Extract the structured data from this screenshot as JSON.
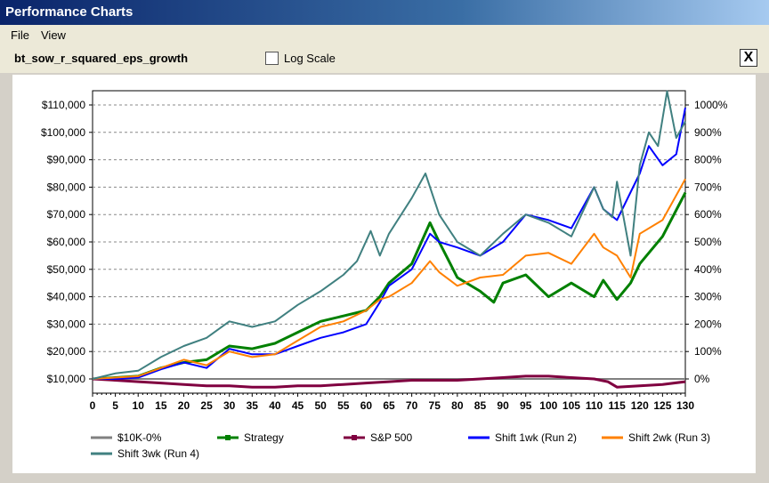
{
  "window": {
    "title": "Performance Charts"
  },
  "menu": {
    "file": "File",
    "view": "View"
  },
  "toolbar": {
    "strategy_name": "bt_sow_r_squared_eps_growth",
    "log_scale_label": "Log Scale",
    "log_scale_checked": false,
    "close_label": "X"
  },
  "chart_data": {
    "type": "line",
    "title": "",
    "xlabel": "",
    "ylabel": "",
    "x_ticks": [
      0,
      5,
      10,
      15,
      20,
      25,
      30,
      35,
      40,
      45,
      50,
      55,
      60,
      65,
      70,
      75,
      80,
      85,
      90,
      95,
      100,
      105,
      110,
      115,
      120,
      125,
      130
    ],
    "xlim": [
      0,
      130
    ],
    "ylim": [
      10000,
      110000
    ],
    "y_ticks": [
      "$10,000",
      "$20,000",
      "$30,000",
      "$40,000",
      "$50,000",
      "$60,000",
      "$70,000",
      "$80,000",
      "$90,000",
      "$100,000",
      "$110,000"
    ],
    "y2_ticks": [
      "0%",
      "100%",
      "200%",
      "300%",
      "400%",
      "500%",
      "600%",
      "700%",
      "800%",
      "900%",
      "1000%"
    ],
    "grid": true,
    "legend_position": "bottom",
    "series": [
      {
        "name": "$10K-0%",
        "color": "#808080",
        "points": [
          [
            0,
            10000
          ],
          [
            130,
            10000
          ]
        ]
      },
      {
        "name": "Strategy",
        "color": "#008000",
        "points": [
          [
            0,
            10000
          ],
          [
            5,
            10500
          ],
          [
            10,
            11000
          ],
          [
            15,
            14000
          ],
          [
            20,
            16000
          ],
          [
            25,
            17000
          ],
          [
            30,
            22000
          ],
          [
            35,
            21000
          ],
          [
            40,
            23000
          ],
          [
            45,
            27000
          ],
          [
            50,
            31000
          ],
          [
            55,
            33000
          ],
          [
            60,
            35000
          ],
          [
            63,
            40000
          ],
          [
            65,
            45000
          ],
          [
            70,
            52000
          ],
          [
            74,
            67000
          ],
          [
            76,
            60000
          ],
          [
            80,
            47000
          ],
          [
            85,
            42000
          ],
          [
            88,
            38000
          ],
          [
            90,
            45000
          ],
          [
            95,
            48000
          ],
          [
            100,
            40000
          ],
          [
            105,
            45000
          ],
          [
            110,
            40000
          ],
          [
            112,
            46000
          ],
          [
            115,
            39000
          ],
          [
            118,
            45000
          ],
          [
            120,
            52000
          ],
          [
            125,
            62000
          ],
          [
            130,
            78000
          ]
        ]
      },
      {
        "name": "S&P 500",
        "color": "#800040",
        "points": [
          [
            0,
            10000
          ],
          [
            5,
            9500
          ],
          [
            10,
            9000
          ],
          [
            15,
            8500
          ],
          [
            20,
            8000
          ],
          [
            25,
            7500
          ],
          [
            30,
            7500
          ],
          [
            35,
            7000
          ],
          [
            40,
            7000
          ],
          [
            45,
            7500
          ],
          [
            50,
            7500
          ],
          [
            55,
            8000
          ],
          [
            60,
            8500
          ],
          [
            65,
            9000
          ],
          [
            70,
            9500
          ],
          [
            75,
            9500
          ],
          [
            80,
            9500
          ],
          [
            85,
            10000
          ],
          [
            90,
            10500
          ],
          [
            95,
            11000
          ],
          [
            100,
            11000
          ],
          [
            105,
            10500
          ],
          [
            110,
            10000
          ],
          [
            113,
            9000
          ],
          [
            115,
            7000
          ],
          [
            120,
            7500
          ],
          [
            125,
            8000
          ],
          [
            130,
            9000
          ]
        ]
      },
      {
        "name": "Shift 1wk (Run 2)",
        "color": "#0000ff",
        "points": [
          [
            0,
            10000
          ],
          [
            5,
            10000
          ],
          [
            10,
            10500
          ],
          [
            15,
            13500
          ],
          [
            20,
            16000
          ],
          [
            25,
            14000
          ],
          [
            30,
            21000
          ],
          [
            35,
            19000
          ],
          [
            40,
            19000
          ],
          [
            45,
            22000
          ],
          [
            50,
            25000
          ],
          [
            55,
            27000
          ],
          [
            60,
            30000
          ],
          [
            63,
            38000
          ],
          [
            65,
            44000
          ],
          [
            70,
            50000
          ],
          [
            74,
            63000
          ],
          [
            76,
            60000
          ],
          [
            80,
            58000
          ],
          [
            85,
            55000
          ],
          [
            90,
            60000
          ],
          [
            95,
            70000
          ],
          [
            100,
            68000
          ],
          [
            105,
            65000
          ],
          [
            110,
            80000
          ],
          [
            112,
            72000
          ],
          [
            115,
            68000
          ],
          [
            120,
            85000
          ],
          [
            122,
            95000
          ],
          [
            125,
            88000
          ],
          [
            128,
            92000
          ],
          [
            130,
            109000
          ]
        ]
      },
      {
        "name": "Shift 2wk (Run 3)",
        "color": "#ff8000",
        "points": [
          [
            0,
            10000
          ],
          [
            5,
            10500
          ],
          [
            10,
            11000
          ],
          [
            15,
            14000
          ],
          [
            20,
            17000
          ],
          [
            25,
            15000
          ],
          [
            30,
            20000
          ],
          [
            35,
            18000
          ],
          [
            40,
            19000
          ],
          [
            45,
            24000
          ],
          [
            50,
            29000
          ],
          [
            55,
            31000
          ],
          [
            60,
            35000
          ],
          [
            63,
            39000
          ],
          [
            65,
            40000
          ],
          [
            70,
            45000
          ],
          [
            74,
            53000
          ],
          [
            76,
            49000
          ],
          [
            80,
            44000
          ],
          [
            85,
            47000
          ],
          [
            90,
            48000
          ],
          [
            95,
            55000
          ],
          [
            100,
            56000
          ],
          [
            105,
            52000
          ],
          [
            110,
            63000
          ],
          [
            112,
            58000
          ],
          [
            115,
            55000
          ],
          [
            118,
            47000
          ],
          [
            120,
            63000
          ],
          [
            125,
            68000
          ],
          [
            130,
            83000
          ]
        ]
      },
      {
        "name": "Shift 3wk (Run 4)",
        "color": "#408080",
        "points": [
          [
            0,
            10000
          ],
          [
            5,
            12000
          ],
          [
            10,
            13000
          ],
          [
            15,
            18000
          ],
          [
            20,
            22000
          ],
          [
            25,
            25000
          ],
          [
            30,
            31000
          ],
          [
            35,
            29000
          ],
          [
            40,
            31000
          ],
          [
            45,
            37000
          ],
          [
            50,
            42000
          ],
          [
            55,
            48000
          ],
          [
            58,
            53000
          ],
          [
            61,
            64000
          ],
          [
            63,
            55000
          ],
          [
            65,
            63000
          ],
          [
            70,
            76000
          ],
          [
            73,
            85000
          ],
          [
            76,
            70000
          ],
          [
            80,
            60000
          ],
          [
            85,
            55000
          ],
          [
            90,
            63000
          ],
          [
            95,
            70000
          ],
          [
            100,
            67000
          ],
          [
            105,
            62000
          ],
          [
            110,
            80000
          ],
          [
            112,
            72000
          ],
          [
            114,
            69000
          ],
          [
            115,
            82000
          ],
          [
            118,
            55000
          ],
          [
            120,
            88000
          ],
          [
            122,
            100000
          ],
          [
            124,
            95000
          ],
          [
            125,
            105000
          ],
          [
            126,
            115000
          ],
          [
            128,
            98000
          ],
          [
            130,
            104000
          ]
        ]
      }
    ]
  }
}
